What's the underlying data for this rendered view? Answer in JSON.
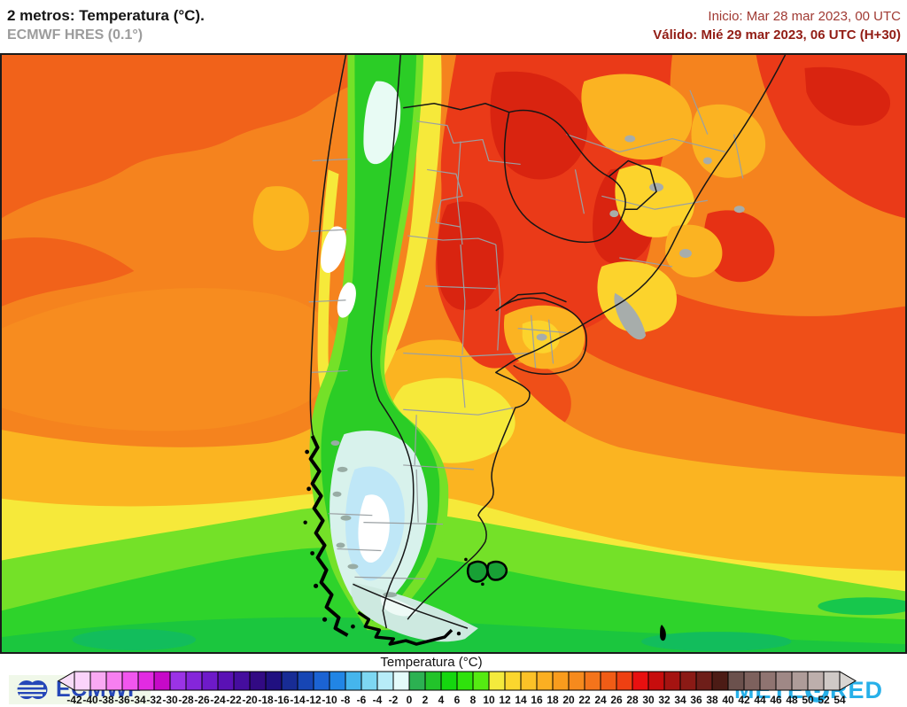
{
  "header": {
    "title": "2 metros: Temperatura (°C).",
    "subtitle": "ECMWF HRES (0.1°)",
    "init_line": "Inicio: Mar 28 mar 2023, 00 UTC",
    "valid_line": "Válido: Mié 29 mar 2023, 06 UTC (H+30)"
  },
  "branding": {
    "ecmwf_label": "ECMWF",
    "meteored_prefix": "METE",
    "meteored_suffix": "RED"
  },
  "colorbar": {
    "title": "Temperatura (°C)",
    "min": -42,
    "max": 54,
    "step": 2,
    "tick_labels": [
      "-42",
      "-40",
      "-38",
      "-36",
      "-34",
      "-32",
      "-30",
      "-28",
      "-26",
      "-24",
      "-22",
      "-20",
      "-18",
      "-16",
      "-14",
      "-12",
      "-10",
      "-8",
      "-6",
      "-4",
      "-2",
      "0",
      "2",
      "4",
      "6",
      "8",
      "10",
      "12",
      "14",
      "16",
      "18",
      "20",
      "22",
      "24",
      "26",
      "28",
      "30",
      "32",
      "34",
      "36",
      "38",
      "40",
      "42",
      "44",
      "46",
      "48",
      "50",
      "52",
      "54"
    ],
    "cell_colors": [
      "#fbd3fb",
      "#f9a9f3",
      "#f77ff0",
      "#f156ee",
      "#e22be2",
      "#c609c8",
      "#9b33e6",
      "#8526da",
      "#6e1ac9",
      "#5a11b5",
      "#450d9e",
      "#320a83",
      "#201080",
      "#182c95",
      "#1746b4",
      "#1b63d3",
      "#2185e5",
      "#45b5ec",
      "#7dd7f2",
      "#b7ecf8",
      "#e4fbfa",
      "#2cb152",
      "#22c32a",
      "#15d60f",
      "#2fe20c",
      "#55ea12",
      "#f4ea3c",
      "#fbd62e",
      "#fcc127",
      "#fbaf22",
      "#f99c1d",
      "#f68a1d",
      "#f4741b",
      "#f15c16",
      "#ee4012",
      "#e81010",
      "#c70d0d",
      "#a51311",
      "#8b1a15",
      "#6e1e19",
      "#4c1b15",
      "#6b514d",
      "#7d615d",
      "#8f7471",
      "#9f8886",
      "#ae9c99",
      "#bdafac",
      "#cfc9c6"
    ],
    "left_arrow_color": "#f8dcf8",
    "right_arrow_color": "#d8d5d2"
  }
}
